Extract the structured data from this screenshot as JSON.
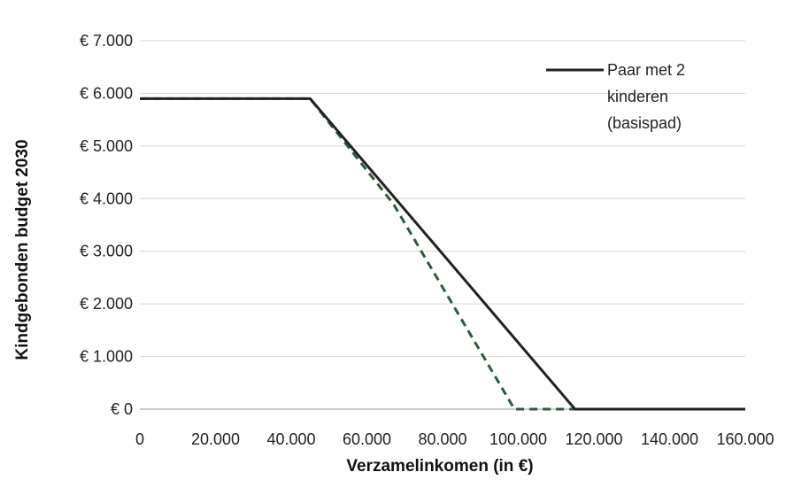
{
  "chart_data": {
    "type": "line",
    "title": "",
    "xlabel": "Verzamelinkomen (in €)",
    "ylabel": "Kindgebonden budget 2030",
    "xlim": [
      0,
      160000
    ],
    "ylim": [
      0,
      7000
    ],
    "x_ticks": [
      0,
      20000,
      40000,
      60000,
      80000,
      100000,
      120000,
      140000,
      160000
    ],
    "x_tick_labels": [
      "0",
      "20.000",
      "40.000",
      "60.000",
      "80.000",
      "100.000",
      "120.000",
      "140.000",
      "160.000"
    ],
    "y_ticks": [
      0,
      1000,
      2000,
      3000,
      4000,
      5000,
      6000,
      7000
    ],
    "y_tick_labels": [
      "€ 0",
      "€ 1.000",
      "€ 2.000",
      "€ 3.000",
      "€ 4.000",
      "€ 5.000",
      "€ 6.000",
      "€ 7.000"
    ],
    "grid": "horizontal",
    "legend_position": "top-right",
    "legend_lines": [
      "Paar met 2",
      "kinderen",
      "(basispad)"
    ],
    "series": [
      {
        "name": "Paar met 2 kinderen (basispad)",
        "style": "solid",
        "color": "#222222",
        "points": [
          [
            0,
            5900
          ],
          [
            45000,
            5900
          ],
          [
            115000,
            0
          ],
          [
            160000,
            0
          ]
        ]
      },
      {
        "style": "dashed",
        "color": "#2e5a3a",
        "points": [
          [
            0,
            5900
          ],
          [
            45000,
            5900
          ],
          [
            67000,
            3900
          ],
          [
            99000,
            0
          ],
          [
            160000,
            0
          ]
        ]
      }
    ]
  }
}
